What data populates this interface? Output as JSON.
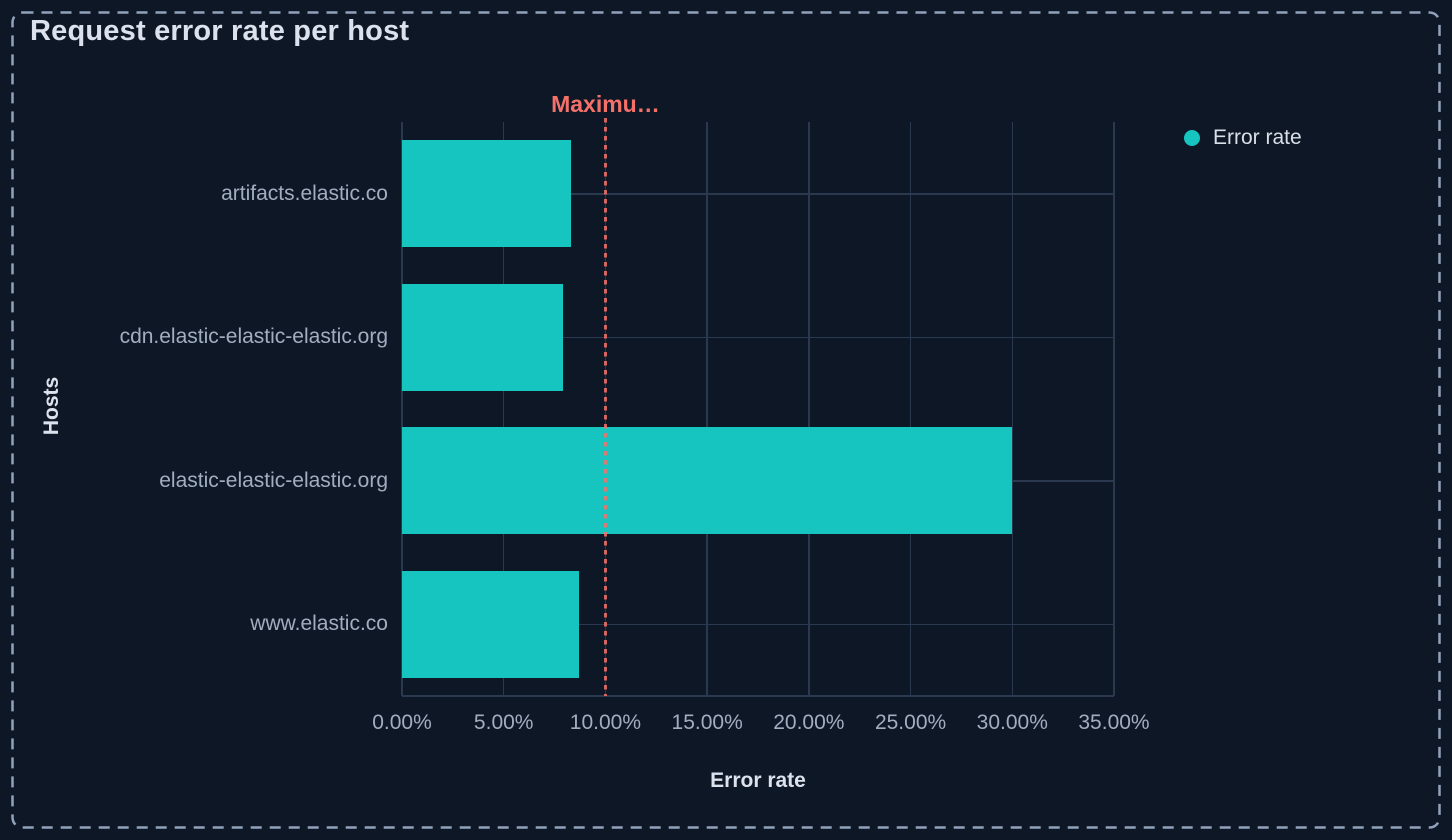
{
  "panel": {
    "title": "Request error rate per host"
  },
  "legend": {
    "position": "top-right",
    "items": [
      {
        "label": "Error rate",
        "color": "#16C5C0"
      }
    ]
  },
  "chart_data": {
    "type": "bar",
    "orientation": "horizontal",
    "title": "Request error rate per host",
    "categories": [
      "artifacts.elastic.co",
      "cdn.elastic-elastic-elastic.org",
      "elastic-elastic-elastic.org",
      "www.elastic.co"
    ],
    "series": [
      {
        "name": "Error rate",
        "color": "#16C5C0",
        "values": [
          8.3,
          7.9,
          30.0,
          8.7
        ]
      }
    ],
    "unit": "%",
    "xlabel": "Error rate",
    "ylabel": "Hosts",
    "xlim": [
      0,
      35
    ],
    "x_tick_values": [
      0,
      5,
      10,
      15,
      20,
      25,
      30,
      35
    ],
    "x_ticks": [
      "0.00%",
      "5.00%",
      "10.00%",
      "15.00%",
      "20.00%",
      "25.00%",
      "30.00%",
      "35.00%"
    ],
    "grid": true,
    "legend_position": "top-right",
    "annotations": [
      {
        "type": "vline",
        "x": 10,
        "label": "Maximu…",
        "line_style": "dashed",
        "color": "#F4716A"
      }
    ]
  },
  "colors": {
    "background": "#0E1726",
    "panel_border": "#91A2BC",
    "bar": "#16C5C0",
    "annotation": "#F4716A",
    "gridline": "#2A3850",
    "title_text": "#DBE2ED",
    "label_text": "#A2ADC0",
    "legend_text": "#D8DFE9"
  }
}
